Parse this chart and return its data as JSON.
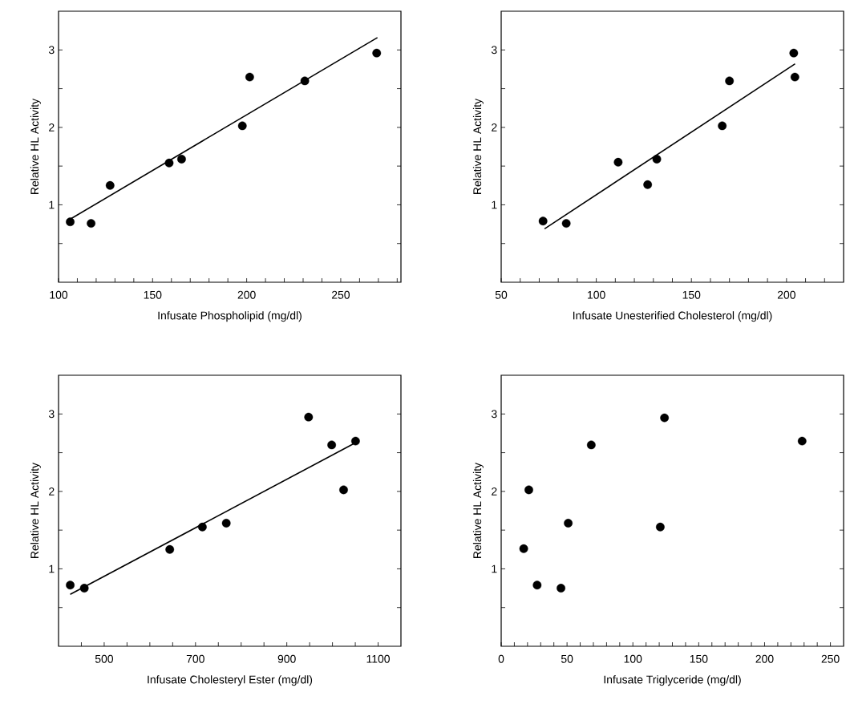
{
  "chart_data": [
    {
      "type": "scatter",
      "xlabel": "Infusate Phospholipid (mg/dl)",
      "ylabel": "Relative HL Activity",
      "xlim": [
        100,
        282
      ],
      "ylim": [
        0,
        3.5
      ],
      "xticks": [
        100,
        {
          "value": 110,
          "label": null
        },
        {
          "value": 120,
          "label": null
        },
        {
          "value": 130,
          "label": null
        },
        {
          "value": 140,
          "label": null
        },
        150,
        {
          "value": 160,
          "label": null
        },
        {
          "value": 170,
          "label": null
        },
        {
          "value": 180,
          "label": null
        },
        {
          "value": 190,
          "label": null
        },
        200,
        {
          "value": 210,
          "label": null
        },
        {
          "value": 220,
          "label": null
        },
        {
          "value": 230,
          "label": null
        },
        {
          "value": 240,
          "label": null
        },
        250,
        {
          "value": 260,
          "label": null
        },
        {
          "value": 270,
          "label": null
        },
        {
          "value": 280,
          "label": null
        }
      ],
      "yticks": [
        {
          "value": 0.5,
          "label": null
        },
        1,
        {
          "value": 1.5,
          "label": null
        },
        2,
        {
          "value": 2.5,
          "label": null
        },
        3
      ],
      "series": [
        {
          "type": "scatter",
          "marker": "circle",
          "color": "#000000",
          "x": [
            106.2,
            117.3,
            127.4,
            158.8,
            165.4,
            197.7,
            201.6,
            230.9,
            269.1
          ],
          "values": [
            0.78,
            0.76,
            1.25,
            1.54,
            1.59,
            2.02,
            2.65,
            2.6,
            2.96
          ]
        },
        {
          "type": "line",
          "color": "#000000",
          "x": [
            106.6,
            269.5
          ],
          "values": [
            0.82,
            3.16
          ]
        }
      ]
    },
    {
      "type": "scatter",
      "xlabel": "Infusate Unesterified Cholesterol (mg/dl)",
      "ylabel": "Relative HL Activity",
      "xlim": [
        50,
        230
      ],
      "ylim": [
        0,
        3.5
      ],
      "xticks": [
        50,
        {
          "value": 60,
          "label": null
        },
        {
          "value": 70,
          "label": null
        },
        {
          "value": 80,
          "label": null
        },
        {
          "value": 90,
          "label": null
        },
        100,
        {
          "value": 110,
          "label": null
        },
        {
          "value": 120,
          "label": null
        },
        {
          "value": 130,
          "label": null
        },
        {
          "value": 140,
          "label": null
        },
        150,
        {
          "value": 160,
          "label": null
        },
        {
          "value": 170,
          "label": null
        },
        {
          "value": 180,
          "label": null
        },
        {
          "value": 190,
          "label": null
        },
        200,
        {
          "value": 210,
          "label": null
        },
        {
          "value": 220,
          "label": null
        }
      ],
      "yticks": [
        {
          "value": 0.5,
          "label": null
        },
        1,
        {
          "value": 1.5,
          "label": null
        },
        2,
        {
          "value": 2.5,
          "label": null
        },
        3
      ],
      "series": [
        {
          "type": "scatter",
          "marker": "circle",
          "color": "#000000",
          "x": [
            72.0,
            84.2,
            111.5,
            127.0,
            131.8,
            166.2,
            170.0,
            203.8,
            204.4
          ],
          "values": [
            0.79,
            0.76,
            1.55,
            1.26,
            1.59,
            2.02,
            2.6,
            2.96,
            2.65
          ]
        },
        {
          "type": "line",
          "color": "#000000",
          "x": [
            72.8,
            204.5
          ],
          "values": [
            0.69,
            2.82
          ]
        }
      ]
    },
    {
      "type": "scatter",
      "xlabel": "Infusate Cholesteryl Ester (mg/dl)",
      "ylabel": "Relative HL Activity",
      "xlim": [
        400,
        1150
      ],
      "ylim": [
        0,
        3.5
      ],
      "xticks": [
        {
          "value": 450,
          "label": null
        },
        500,
        {
          "value": 550,
          "label": null
        },
        {
          "value": 600,
          "label": null
        },
        {
          "value": 650,
          "label": null
        },
        700,
        {
          "value": 750,
          "label": null
        },
        {
          "value": 800,
          "label": null
        },
        {
          "value": 850,
          "label": null
        },
        900,
        {
          "value": 950,
          "label": null
        },
        {
          "value": 1000,
          "label": null
        },
        {
          "value": 1050,
          "label": null
        },
        1100
      ],
      "yticks": [
        {
          "value": 0.5,
          "label": null
        },
        1,
        {
          "value": 1.5,
          "label": null
        },
        2,
        {
          "value": 2.5,
          "label": null
        },
        3
      ],
      "series": [
        {
          "type": "scatter",
          "marker": "circle",
          "color": "#000000",
          "x": [
            425.6,
            456.4,
            643.6,
            715.1,
            767.4,
            947.7,
            998.3,
            1024.4,
            1050.6
          ],
          "values": [
            0.79,
            0.75,
            1.25,
            1.54,
            1.59,
            2.96,
            2.6,
            2.02,
            2.65
          ]
        },
        {
          "type": "line",
          "color": "#000000",
          "x": [
            425.6,
            1047.7
          ],
          "values": [
            0.67,
            2.62
          ]
        }
      ]
    },
    {
      "type": "scatter",
      "xlabel": "Infusate Triglyceride (mg/dl)",
      "ylabel": "Relative HL Activity",
      "xlim": [
        0,
        260
      ],
      "ylim": [
        0,
        3.5
      ],
      "xticks": [
        0,
        {
          "value": 10,
          "label": null
        },
        {
          "value": 20,
          "label": null
        },
        {
          "value": 30,
          "label": null
        },
        {
          "value": 40,
          "label": null
        },
        50,
        {
          "value": 60,
          "label": null
        },
        {
          "value": 70,
          "label": null
        },
        {
          "value": 80,
          "label": null
        },
        {
          "value": 90,
          "label": null
        },
        100,
        {
          "value": 110,
          "label": null
        },
        {
          "value": 120,
          "label": null
        },
        {
          "value": 130,
          "label": null
        },
        {
          "value": 140,
          "label": null
        },
        150,
        {
          "value": 160,
          "label": null
        },
        {
          "value": 170,
          "label": null
        },
        {
          "value": 180,
          "label": null
        },
        {
          "value": 190,
          "label": null
        },
        200,
        {
          "value": 210,
          "label": null
        },
        {
          "value": 220,
          "label": null
        },
        {
          "value": 230,
          "label": null
        },
        {
          "value": 240,
          "label": null
        },
        250
      ],
      "yticks": [
        {
          "value": 0.5,
          "label": null
        },
        1,
        {
          "value": 1.5,
          "label": null
        },
        2,
        {
          "value": 2.5,
          "label": null
        },
        3
      ],
      "series": [
        {
          "type": "scatter",
          "marker": "circle",
          "color": "#000000",
          "x": [
            17.1,
            21.0,
            27.3,
            45.4,
            50.9,
            68.4,
            120.8,
            124.0,
            228.5
          ],
          "values": [
            1.26,
            2.02,
            0.79,
            0.75,
            1.59,
            2.6,
            1.54,
            2.95,
            2.65
          ]
        }
      ]
    }
  ]
}
